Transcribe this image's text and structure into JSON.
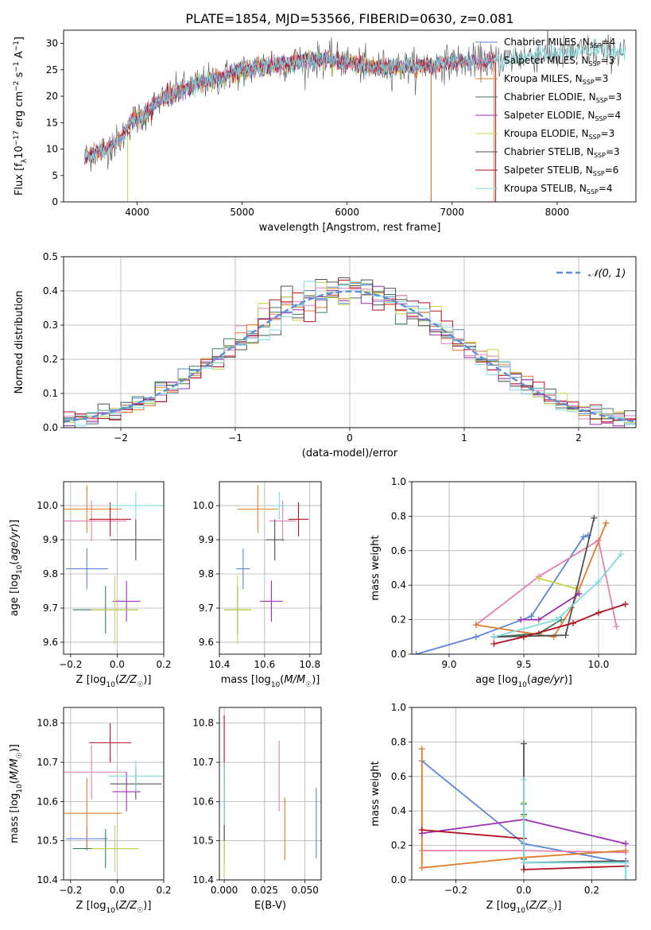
{
  "title": "PLATE=1854, MJD=53566, FIBERID=0630, z=0.081",
  "colors": {
    "Chabrier MILES": "#5b86d6",
    "Salpeter MILES": "#e57fb0",
    "Kroupa MILES": "#e07b2b",
    "Chabrier ELODIE": "#3d7a5c",
    "Salpeter ELODIE": "#9a2fb1",
    "Kroupa ELODIE": "#c8d44a",
    "Chabrier STELIB": "#505050",
    "Salpeter STELIB": "#b01020",
    "Kroupa STELIB": "#7fdbe0"
  },
  "chart_data": [
    {
      "id": "spectrum",
      "type": "line",
      "xlabel": "wavelength [Angstrom, rest frame]",
      "ylabel": "Flux [f_λ 10^-17 erg cm^-2 s^-1 A^-1]",
      "xlim": [
        3300,
        8750
      ],
      "ylim": [
        0,
        32.5
      ],
      "xticks": [
        4000,
        5000,
        6000,
        7000,
        8000
      ],
      "yticks": [
        0,
        5,
        10,
        15,
        20,
        25,
        30
      ],
      "grid": false,
      "legend_position": "upper-right",
      "legend": [
        {
          "model": "Chabrier MILES",
          "label": "Chabrier MILES, N",
          "nssp": "=4"
        },
        {
          "model": "Salpeter MILES",
          "label": "Salpeter MILES, N",
          "nssp": "=3"
        },
        {
          "model": "Kroupa MILES",
          "label": "Kroupa MILES, N",
          "nssp": "=3"
        },
        {
          "model": "Chabrier ELODIE",
          "label": "Chabrier ELODIE, N",
          "nssp": "=3"
        },
        {
          "model": "Salpeter ELODIE",
          "label": "Salpeter ELODIE, N",
          "nssp": "=4"
        },
        {
          "model": "Kroupa ELODIE",
          "label": "Kroupa ELODIE, N",
          "nssp": "=3"
        },
        {
          "model": "Chabrier STELIB",
          "label": "Chabrier STELIB, N",
          "nssp": "=3"
        },
        {
          "model": "Salpeter STELIB",
          "label": "Salpeter STELIB, N",
          "nssp": "=6"
        },
        {
          "model": "Kroupa STELIB",
          "label": "Kroupa STELIB, N",
          "nssp": "=4"
        }
      ],
      "continuum_nodes": [
        [
          3500,
          8.5
        ],
        [
          3700,
          10
        ],
        [
          3850,
          12
        ],
        [
          3950,
          15.5
        ],
        [
          4050,
          16
        ],
        [
          4200,
          19
        ],
        [
          4400,
          21
        ],
        [
          4600,
          22.5
        ],
        [
          4800,
          23.5
        ],
        [
          5000,
          25
        ],
        [
          5200,
          25.5
        ],
        [
          5500,
          26.5
        ],
        [
          5800,
          27
        ],
        [
          6000,
          26.5
        ],
        [
          6200,
          25.5
        ],
        [
          6500,
          25.5
        ],
        [
          6800,
          25.8
        ],
        [
          7000,
          26.5
        ],
        [
          7200,
          26.5
        ],
        [
          7500,
          27
        ],
        [
          7800,
          27.8
        ],
        [
          8000,
          28
        ],
        [
          8300,
          28.5
        ],
        [
          8650,
          28.3
        ]
      ],
      "series_ranges": {
        "Chabrier MILES": [
          3500,
          7400
        ],
        "Salpeter MILES": [
          3500,
          7400
        ],
        "Kroupa MILES": [
          3500,
          7400
        ],
        "Chabrier ELODIE": [
          3900,
          6800
        ],
        "Salpeter ELODIE": [
          3900,
          6800
        ],
        "Kroupa ELODIE": [
          3900,
          6800
        ],
        "Chabrier STELIB": [
          3500,
          8650
        ],
        "Salpeter STELIB": [
          3500,
          7420
        ],
        "Kroupa STELIB": [
          3500,
          8650
        ]
      }
    },
    {
      "id": "residuals",
      "type": "histogram",
      "xlabel": "(data-model)/error",
      "ylabel": "Normed distribution",
      "xlim": [
        -2.5,
        2.5
      ],
      "ylim": [
        0,
        0.5
      ],
      "xticks": [
        -2,
        -1,
        0,
        1,
        2
      ],
      "yticks": [
        0.0,
        0.1,
        0.2,
        0.3,
        0.4,
        0.5
      ],
      "grid": true,
      "legend_position": "upper-right",
      "reference_curve": {
        "label": "𝒩(0, 1)",
        "mean": 0,
        "sigma": 1
      },
      "bin_width": 0.1
    },
    {
      "id": "age-vs-Z",
      "type": "errorbar",
      "xlabel": "Z [log10(Z/Z☉)]",
      "ylabel": "age [log10(age/yr)]",
      "xlim": [
        -0.23,
        0.2
      ],
      "ylim": [
        9.565,
        10.07
      ],
      "xticks": [
        -0.2,
        0.0,
        0.2
      ],
      "yticks": [
        9.6,
        9.7,
        9.8,
        9.9,
        10.0
      ],
      "grid": true,
      "points": [
        {
          "model": "Chabrier MILES",
          "x": -0.13,
          "xerr": 0.09,
          "y": 9.815,
          "yerr": 0.06
        },
        {
          "model": "Salpeter MILES",
          "x": -0.11,
          "xerr": 0.15,
          "y": 9.955,
          "yerr": 0.06
        },
        {
          "model": "Kroupa MILES",
          "x": -0.13,
          "xerr": 0.15,
          "y": 9.99,
          "yerr": 0.07
        },
        {
          "model": "Chabrier ELODIE",
          "x": -0.05,
          "xerr": 0.14,
          "y": 9.695,
          "yerr": 0.07
        },
        {
          "model": "Salpeter ELODIE",
          "x": 0.04,
          "xerr": 0.06,
          "y": 9.72,
          "yerr": 0.06
        },
        {
          "model": "Kroupa ELODIE",
          "x": -0.01,
          "xerr": 0.1,
          "y": 9.695,
          "yerr": 0.1
        },
        {
          "model": "Chabrier STELIB",
          "x": 0.08,
          "xerr": 0.11,
          "y": 9.9,
          "yerr": 0.06
        },
        {
          "model": "Salpeter STELIB",
          "x": -0.03,
          "xerr": 0.09,
          "y": 9.96,
          "yerr": 0.05
        },
        {
          "model": "Kroupa STELIB",
          "x": 0.08,
          "xerr": 0.12,
          "y": 10.0,
          "yerr": 0.04
        }
      ]
    },
    {
      "id": "age-vs-mass",
      "type": "errorbar",
      "xlabel": "mass [log10(M/M☉)]",
      "ylabel": "",
      "xlim": [
        10.4,
        10.85
      ],
      "ylim": [
        9.565,
        10.07
      ],
      "xticks": [
        10.4,
        10.6,
        10.8
      ],
      "yticks": [
        9.6,
        9.7,
        9.8,
        9.9,
        10.0
      ],
      "grid": true,
      "points": [
        {
          "model": "Chabrier MILES",
          "x": 10.505,
          "xerr": 0.03,
          "y": 9.815,
          "yerr": 0.06
        },
        {
          "model": "Salpeter MILES",
          "x": 10.68,
          "xerr": 0.06,
          "y": 9.955,
          "yerr": 0.06
        },
        {
          "model": "Kroupa MILES",
          "x": 10.57,
          "xerr": 0.09,
          "y": 9.99,
          "yerr": 0.07
        },
        {
          "model": "Chabrier ELODIE",
          "x": 10.48,
          "xerr": 0.06,
          "y": 9.695,
          "yerr": 0.07
        },
        {
          "model": "Salpeter ELODIE",
          "x": 10.63,
          "xerr": 0.05,
          "y": 9.72,
          "yerr": 0.06
        },
        {
          "model": "Kroupa ELODIE",
          "x": 10.48,
          "xerr": 0.06,
          "y": 9.695,
          "yerr": 0.1
        },
        {
          "model": "Chabrier STELIB",
          "x": 10.645,
          "xerr": 0.04,
          "y": 9.9,
          "yerr": 0.06
        },
        {
          "model": "Salpeter STELIB",
          "x": 10.75,
          "xerr": 0.045,
          "y": 9.96,
          "yerr": 0.05
        },
        {
          "model": "Kroupa STELIB",
          "x": 10.665,
          "xerr": 0.04,
          "y": 10.0,
          "yerr": 0.04
        }
      ]
    },
    {
      "id": "weight-vs-age",
      "type": "line",
      "xlabel": "age [log10(age/yr)]",
      "ylabel": "mass weight",
      "xlim": [
        8.75,
        10.25
      ],
      "ylim": [
        0,
        1.0
      ],
      "xticks": [
        9.0,
        9.5,
        10.0
      ],
      "yticks": [
        0.0,
        0.2,
        0.4,
        0.6,
        0.8,
        1.0
      ],
      "grid": true,
      "series": [
        {
          "model": "Chabrier MILES",
          "x": [
            8.78,
            9.18,
            9.55,
            9.9,
            9.93
          ],
          "y": [
            0.0,
            0.1,
            0.22,
            0.68,
            0.69
          ]
        },
        {
          "model": "Salpeter MILES",
          "x": [
            9.18,
            9.6,
            10.0,
            10.12
          ],
          "y": [
            0.17,
            0.45,
            0.66,
            0.16
          ]
        },
        {
          "model": "Kroupa MILES",
          "x": [
            9.18,
            9.7,
            9.82,
            10.05
          ],
          "y": [
            0.17,
            0.1,
            0.27,
            0.76
          ]
        },
        {
          "model": "Chabrier ELODIE",
          "x": [
            9.3,
            9.6,
            9.75
          ],
          "y": [
            0.1,
            0.12,
            0.2
          ]
        },
        {
          "model": "Salpeter ELODIE",
          "x": [
            9.48,
            9.6,
            9.87
          ],
          "y": [
            0.2,
            0.2,
            0.35
          ]
        },
        {
          "model": "Kroupa ELODIE",
          "x": [
            9.6,
            9.85
          ],
          "y": [
            0.44,
            0.38
          ]
        },
        {
          "model": "Chabrier STELIB",
          "x": [
            9.3,
            9.78,
            9.97
          ],
          "y": [
            0.1,
            0.11,
            0.79
          ]
        },
        {
          "model": "Salpeter STELIB",
          "x": [
            9.3,
            9.5,
            9.83,
            10.0,
            10.18
          ],
          "y": [
            0.06,
            0.1,
            0.18,
            0.24,
            0.29
          ]
        },
        {
          "model": "Kroupa STELIB",
          "x": [
            9.3,
            9.72,
            10.0,
            10.15
          ],
          "y": [
            0.1,
            0.2,
            0.42,
            0.58
          ]
        }
      ]
    },
    {
      "id": "mass-vs-Z",
      "type": "errorbar",
      "xlabel": "Z [log10(Z/Z☉)]",
      "ylabel": "mass [log10(M/M☉)]",
      "xlim": [
        -0.23,
        0.2
      ],
      "ylim": [
        10.4,
        10.84
      ],
      "xticks": [
        -0.2,
        0.0,
        0.2
      ],
      "yticks": [
        10.4,
        10.5,
        10.6,
        10.7,
        10.8
      ],
      "grid": true,
      "points": [
        {
          "model": "Chabrier MILES",
          "x": -0.13,
          "xerr": 0.09,
          "y": 10.505,
          "yerr": 0.03
        },
        {
          "model": "Salpeter MILES",
          "x": -0.11,
          "xerr": 0.15,
          "y": 10.675,
          "yerr": 0.07
        },
        {
          "model": "Kroupa MILES",
          "x": -0.13,
          "xerr": 0.15,
          "y": 10.57,
          "yerr": 0.09
        },
        {
          "model": "Chabrier ELODIE",
          "x": -0.05,
          "xerr": 0.14,
          "y": 10.48,
          "yerr": 0.05
        },
        {
          "model": "Salpeter ELODIE",
          "x": 0.04,
          "xerr": 0.06,
          "y": 10.625,
          "yerr": 0.05
        },
        {
          "model": "Kroupa ELODIE",
          "x": -0.01,
          "xerr": 0.1,
          "y": 10.48,
          "yerr": 0.06
        },
        {
          "model": "Chabrier STELIB",
          "x": 0.08,
          "xerr": 0.11,
          "y": 10.645,
          "yerr": 0.04
        },
        {
          "model": "Salpeter STELIB",
          "x": -0.03,
          "xerr": 0.09,
          "y": 10.75,
          "yerr": 0.05
        },
        {
          "model": "Kroupa STELIB",
          "x": 0.08,
          "xerr": 0.12,
          "y": 10.665,
          "yerr": 0.04
        }
      ]
    },
    {
      "id": "mass-vs-EBV",
      "type": "errorbar",
      "xlabel": "E(B-V)",
      "ylabel": "",
      "xlim": [
        -0.003,
        0.06
      ],
      "ylim": [
        10.4,
        10.84
      ],
      "xticks": [
        0.0,
        0.025,
        0.05
      ],
      "yticks": [
        10.4,
        10.5,
        10.6,
        10.7,
        10.8
      ],
      "grid": true,
      "points": [
        {
          "model": "Chabrier MILES",
          "x": 0.057,
          "xerr": 0.0,
          "y": 10.545,
          "yerr": 0.09
        },
        {
          "model": "Salpeter MILES",
          "x": 0.034,
          "xerr": 0.0,
          "y": 10.665,
          "yerr": 0.09
        },
        {
          "model": "Kroupa MILES",
          "x": 0.0375,
          "xerr": 0.0,
          "y": 10.53,
          "yerr": 0.08
        },
        {
          "model": "Chabrier ELODIE",
          "x": 0.0,
          "xerr": 0.0,
          "y": 10.52,
          "yerr": 0.08
        },
        {
          "model": "Salpeter ELODIE",
          "x": 0.0,
          "xerr": 0.0,
          "y": 10.63,
          "yerr": 0.07
        },
        {
          "model": "Kroupa ELODIE",
          "x": 0.0,
          "xerr": 0.0,
          "y": 10.5,
          "yerr": 0.09
        },
        {
          "model": "Chabrier STELIB",
          "x": 0.0,
          "xerr": 0.0,
          "y": 10.6,
          "yerr": 0.1
        },
        {
          "model": "Salpeter STELIB",
          "x": 0.0,
          "xerr": 0.0,
          "y": 10.73,
          "yerr": 0.09
        },
        {
          "model": "Kroupa STELIB",
          "x": 0.0,
          "xerr": 0.0,
          "y": 10.62,
          "yerr": 0.08
        }
      ]
    },
    {
      "id": "weight-vs-Z",
      "type": "line",
      "xlabel": "Z [log10(Z/Z☉)]",
      "ylabel": "mass weight",
      "xlim": [
        -0.33,
        0.33
      ],
      "ylim": [
        0,
        1.0
      ],
      "xticks": [
        -0.2,
        0.0,
        0.2
      ],
      "yticks": [
        0.0,
        0.2,
        0.4,
        0.6,
        0.8,
        1.0
      ],
      "grid": true,
      "series": [
        {
          "model": "Chabrier MILES",
          "x": [
            -0.3,
            0.0,
            0.3,
            0.3
          ],
          "y": [
            0.69,
            0.21,
            0.1,
            0.0
          ]
        },
        {
          "model": "Salpeter MILES",
          "x": [
            -0.3,
            0.0,
            0.3
          ],
          "y": [
            0.17,
            0.17,
            0.16
          ]
        },
        {
          "model": "Kroupa MILES",
          "x": [
            -0.3,
            -0.3,
            0.0,
            0.3
          ],
          "y": [
            0.76,
            0.07,
            0.13,
            0.17
          ]
        },
        {
          "model": "Chabrier ELODIE",
          "x": [
            0.0,
            0.0,
            0.0
          ],
          "y": [
            0.44,
            0.38,
            0.12
          ]
        },
        {
          "model": "Salpeter ELODIE",
          "x": [
            -0.3,
            0.0,
            0.3
          ],
          "y": [
            0.27,
            0.35,
            0.21
          ]
        },
        {
          "model": "Kroupa ELODIE",
          "x": [
            0.0,
            0.0
          ],
          "y": [
            0.45,
            0.37
          ]
        },
        {
          "model": "Chabrier STELIB",
          "x": [
            0.0,
            0.0,
            0.3
          ],
          "y": [
            0.79,
            0.1,
            0.11
          ]
        },
        {
          "model": "Salpeter STELIB",
          "x": [
            -0.3,
            0.0,
            0.0,
            0.3
          ],
          "y": [
            0.29,
            0.24,
            0.06,
            0.08
          ]
        },
        {
          "model": "Kroupa STELIB",
          "x": [
            0.0,
            0.0,
            0.3,
            0.3
          ],
          "y": [
            0.58,
            0.1,
            0.1,
            0.0
          ]
        }
      ]
    }
  ]
}
